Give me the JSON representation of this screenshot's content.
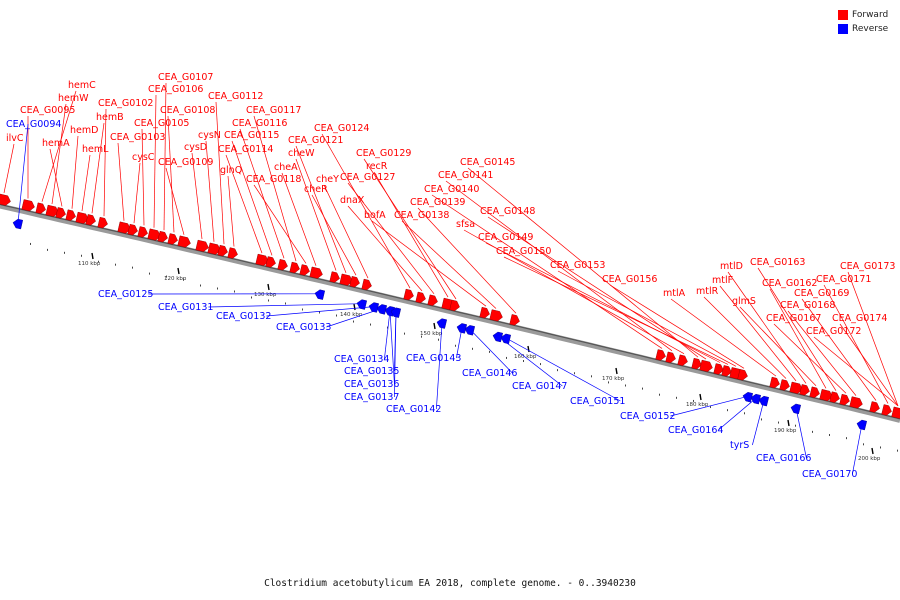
{
  "colors": {
    "forward": "#ff0000",
    "reverse": "#0000ff",
    "backbone": "#666666"
  },
  "legend": [
    {
      "label": "Forward",
      "strand": "forward"
    },
    {
      "label": "Reverse",
      "strand": "reverse"
    }
  ],
  "caption": "Clostridium acetobutylicum EA 2018, complete genome. - 0..3940230",
  "ticks": [
    "110 kbp",
    "120 kbp",
    "130 kbp",
    "140 kbp",
    "150 kbp",
    "160 kbp",
    "170 kbp",
    "180 kbp",
    "190 kbp",
    "200 kbp"
  ],
  "forward_labels": [
    "ilvC",
    "CEA_G0095",
    "hemC",
    "hemW",
    "hemA",
    "hemD",
    "hemL",
    "hemB",
    "CEA_G0102",
    "CEA_G0103",
    "cysC",
    "CEA_G0105",
    "CEA_G0106",
    "CEA_G0107",
    "CEA_G0108",
    "CEA_G0109",
    "cysD",
    "cysN",
    "CEA_G0112",
    "glnQ",
    "CEA_G0114",
    "CEA_G0115",
    "CEA_G0116",
    "CEA_G0117",
    "CEA_G0118",
    "cheA",
    "cheW",
    "CEA_G0121",
    "cheR",
    "cheY",
    "CEA_G0124",
    "dnaX",
    "CEA_G0127",
    "recR",
    "CEA_G0129",
    "bofA",
    "CEA_G0138",
    "CEA_G0139",
    "CEA_G0140",
    "CEA_G0141",
    "sfsa",
    "CEA_G0145",
    "CEA_G0148",
    "CEA_G0149",
    "CEA_G0150",
    "CEA_G0153",
    "CEA_G0156",
    "mtlA",
    "mtlR",
    "mtlF",
    "mtlD",
    "glmS",
    "CEA_G0162",
    "CEA_G0163",
    "CEA_G0167",
    "CEA_G0168",
    "CEA_G0169",
    "CEA_G0171",
    "CEA_G0172",
    "CEA_G0173",
    "CEA_G0174"
  ],
  "reverse_labels": [
    "CEA_G0094",
    "CEA_G0125",
    "CEA_G0131",
    "CEA_G0132",
    "CEA_G0133",
    "CEA_G0134",
    "CEA_G0135",
    "CEA_G0136",
    "CEA_G0137",
    "CEA_G0142",
    "CEA_G0143",
    "CEA_G0146",
    "CEA_G0147",
    "CEA_G0151",
    "CEA_G0152",
    "CEA_G0164",
    "tyrS",
    "CEA_G0166",
    "CEA_G0170"
  ]
}
